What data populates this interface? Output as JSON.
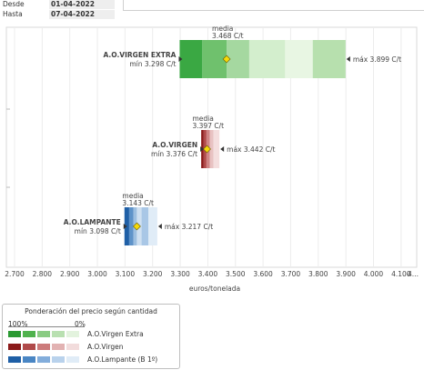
{
  "dates": {
    "from_label": "Desde",
    "from_value": "01-04-2022",
    "to_label": "Hasta",
    "to_value": "07-04-2022"
  },
  "chart_data": {
    "type": "range-bar",
    "xlabel": "euros/tonelada",
    "xlim": [
      2700,
      4150
    ],
    "ticks": [
      "2.700",
      "2.800",
      "2.900",
      "3.000",
      "3.100",
      "3.200",
      "3.300",
      "3.400",
      "3.500",
      "3.600",
      "3.700",
      "3.800",
      "3.900",
      "4.000",
      "4.100",
      "4..."
    ],
    "tick_values": [
      2700,
      2800,
      2900,
      3000,
      3100,
      3200,
      3300,
      3400,
      3500,
      3600,
      3700,
      3800,
      3900,
      4000,
      4100,
      4150
    ],
    "grid": true,
    "series": [
      {
        "name": "A.O.VIRGEN EXTRA",
        "min": 3298,
        "mean": 3468,
        "max": 3899,
        "min_label": "mín 3.298 C/t",
        "mean_label": "media",
        "mean_value_label": "3.468 C/t",
        "max_label": "máx 3.899 C/t",
        "colors": [
          "#3aa843",
          "#6fc16d",
          "#a5d8a0",
          "#d3eecd",
          "#e8f6e3",
          "#b7e0ae"
        ],
        "segment_edges": [
          3298,
          3380,
          3468,
          3550,
          3680,
          3780,
          3899
        ]
      },
      {
        "name": "A.O.VIRGEN",
        "min": 3376,
        "mean": 3397,
        "max": 3442,
        "min_label": "mín 3.376 C/t",
        "mean_label": "media",
        "mean_value_label": "3.397 C/t",
        "max_label": "máx 3.442 C/t",
        "colors": [
          "#8b1a1a",
          "#b04a4a",
          "#cf8585",
          "#e8c2c2",
          "#f4dede"
        ],
        "segment_edges": [
          3376,
          3385,
          3395,
          3407,
          3420,
          3442
        ]
      },
      {
        "name": "A.O.LAMPANTE",
        "min": 3098,
        "mean": 3143,
        "max": 3217,
        "min_label": "mín 3.098 C/t",
        "mean_label": "media",
        "mean_value_label": "3.143 C/t",
        "max_label": "máx 3.217 C/t",
        "colors": [
          "#1f5fa6",
          "#5e93c9",
          "#9dbfe0",
          "#cfe0f1",
          "#a9c7e6",
          "#e0ecf7"
        ],
        "segment_edges": [
          3098,
          3115,
          3130,
          3143,
          3160,
          3185,
          3217
        ]
      }
    ]
  },
  "legend": {
    "title": "Ponderación del precio según cantidad",
    "pct_high": "100%",
    "pct_low": "0%",
    "rows": [
      {
        "label": "A.O.Virgen Extra",
        "swatches": [
          "#2b9a33",
          "#4fb24d",
          "#8acb83",
          "#b9e0b1",
          "#e3f3de"
        ]
      },
      {
        "label": "A.O.Virgen",
        "swatches": [
          "#8b1a1a",
          "#b04a4a",
          "#cc7b7b",
          "#e2b2b2",
          "#f2dcdc"
        ]
      },
      {
        "label": "A.O.Lampante (B 1º)",
        "swatches": [
          "#1f5fa6",
          "#4a86c4",
          "#83addb",
          "#b9d2ec",
          "#e0ecf7"
        ]
      }
    ]
  }
}
